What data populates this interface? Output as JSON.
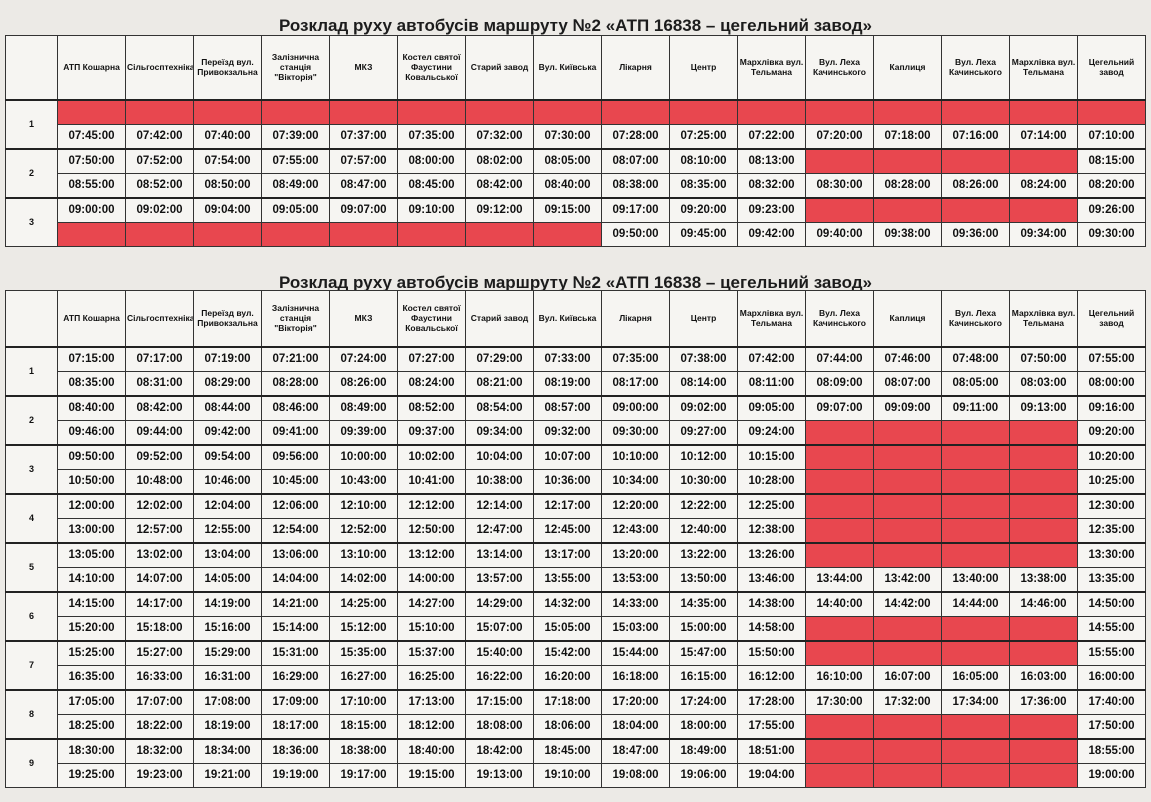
{
  "tables": [
    {
      "title": "Розклад руху автобусів маршруту №2 «АТП 16838 – цегельний завод»",
      "headers": [
        "АТП Кошарна",
        "Сільгосптехніка",
        "Переїзд вул. Привокзальна",
        "Залізнична станція \"Вікторія\"",
        "МКЗ",
        "Костел святої Фаустини Ковальської",
        "Старий завод",
        "Вул. Київська",
        "Лікарня",
        "Центр",
        "Мархлівка вул. Тельмана",
        "Вул. Леха Качинського",
        "Каплиця",
        "Вул. Леха Качинського",
        "Мархлівка вул. Тельмана",
        "Цегельний завод"
      ],
      "groups": [
        {
          "number": 1,
          "rows": [
            [
              null,
              null,
              null,
              null,
              null,
              null,
              null,
              null,
              null,
              null,
              null,
              null,
              null,
              null,
              null,
              null
            ],
            [
              "07:45:00",
              "07:42:00",
              "07:40:00",
              "07:39:00",
              "07:37:00",
              "07:35:00",
              "07:32:00",
              "07:30:00",
              "07:28:00",
              "07:25:00",
              "07:22:00",
              "07:20:00",
              "07:18:00",
              "07:16:00",
              "07:14:00",
              "07:10:00"
            ]
          ]
        },
        {
          "number": 2,
          "rows": [
            [
              "07:50:00",
              "07:52:00",
              "07:54:00",
              "07:55:00",
              "07:57:00",
              "08:00:00",
              "08:02:00",
              "08:05:00",
              "08:07:00",
              "08:10:00",
              "08:13:00",
              null,
              null,
              null,
              null,
              "08:15:00"
            ],
            [
              "08:55:00",
              "08:52:00",
              "08:50:00",
              "08:49:00",
              "08:47:00",
              "08:45:00",
              "08:42:00",
              "08:40:00",
              "08:38:00",
              "08:35:00",
              "08:32:00",
              "08:30:00",
              "08:28:00",
              "08:26:00",
              "08:24:00",
              "08:20:00"
            ]
          ]
        },
        {
          "number": 3,
          "rows": [
            [
              "09:00:00",
              "09:02:00",
              "09:04:00",
              "09:05:00",
              "09:07:00",
              "09:10:00",
              "09:12:00",
              "09:15:00",
              "09:17:00",
              "09:20:00",
              "09:23:00",
              null,
              null,
              null,
              null,
              "09:26:00"
            ],
            [
              null,
              null,
              null,
              null,
              null,
              null,
              null,
              null,
              "09:50:00",
              "09:45:00",
              "09:42:00",
              "09:40:00",
              "09:38:00",
              "09:36:00",
              "09:34:00",
              "09:30:00"
            ]
          ]
        }
      ]
    },
    {
      "title": "Розклад руху автобусів маршруту №2 «АТП 16838 – цегельний завод»",
      "headers": [
        "АТП Кошарна",
        "Сільгосптехніка",
        "Переїзд вул. Привокзальна",
        "Залізнична станція \"Вікторія\"",
        "МКЗ",
        "Костел святої Фаустини Ковальської",
        "Старий завод",
        "Вул. Київська",
        "Лікарня",
        "Центр",
        "Мархлівка вул. Тельмана",
        "Вул. Леха Качинського",
        "Каплиця",
        "Вул. Леха Качинського",
        "Мархлівка вул. Тельмана",
        "Цегельний завод"
      ],
      "groups": [
        {
          "number": 1,
          "rows": [
            [
              "07:15:00",
              "07:17:00",
              "07:19:00",
              "07:21:00",
              "07:24:00",
              "07:27:00",
              "07:29:00",
              "07:33:00",
              "07:35:00",
              "07:38:00",
              "07:42:00",
              "07:44:00",
              "07:46:00",
              "07:48:00",
              "07:50:00",
              "07:55:00"
            ],
            [
              "08:35:00",
              "08:31:00",
              "08:29:00",
              "08:28:00",
              "08:26:00",
              "08:24:00",
              "08:21:00",
              "08:19:00",
              "08:17:00",
              "08:14:00",
              "08:11:00",
              "08:09:00",
              "08:07:00",
              "08:05:00",
              "08:03:00",
              "08:00:00"
            ]
          ]
        },
        {
          "number": 2,
          "rows": [
            [
              "08:40:00",
              "08:42:00",
              "08:44:00",
              "08:46:00",
              "08:49:00",
              "08:52:00",
              "08:54:00",
              "08:57:00",
              "09:00:00",
              "09:02:00",
              "09:05:00",
              "09:07:00",
              "09:09:00",
              "09:11:00",
              "09:13:00",
              "09:16:00"
            ],
            [
              "09:46:00",
              "09:44:00",
              "09:42:00",
              "09:41:00",
              "09:39:00",
              "09:37:00",
              "09:34:00",
              "09:32:00",
              "09:30:00",
              "09:27:00",
              "09:24:00",
              null,
              null,
              null,
              null,
              "09:20:00"
            ]
          ]
        },
        {
          "number": 3,
          "rows": [
            [
              "09:50:00",
              "09:52:00",
              "09:54:00",
              "09:56:00",
              "10:00:00",
              "10:02:00",
              "10:04:00",
              "10:07:00",
              "10:10:00",
              "10:12:00",
              "10:15:00",
              null,
              null,
              null,
              null,
              "10:20:00"
            ],
            [
              "10:50:00",
              "10:48:00",
              "10:46:00",
              "10:45:00",
              "10:43:00",
              "10:41:00",
              "10:38:00",
              "10:36:00",
              "10:34:00",
              "10:30:00",
              "10:28:00",
              null,
              null,
              null,
              null,
              "10:25:00"
            ]
          ]
        },
        {
          "number": 4,
          "rows": [
            [
              "12:00:00",
              "12:02:00",
              "12:04:00",
              "12:06:00",
              "12:10:00",
              "12:12:00",
              "12:14:00",
              "12:17:00",
              "12:20:00",
              "12:22:00",
              "12:25:00",
              null,
              null,
              null,
              null,
              "12:30:00"
            ],
            [
              "13:00:00",
              "12:57:00",
              "12:55:00",
              "12:54:00",
              "12:52:00",
              "12:50:00",
              "12:47:00",
              "12:45:00",
              "12:43:00",
              "12:40:00",
              "12:38:00",
              null,
              null,
              null,
              null,
              "12:35:00"
            ]
          ]
        },
        {
          "number": 5,
          "rows": [
            [
              "13:05:00",
              "13:02:00",
              "13:04:00",
              "13:06:00",
              "13:10:00",
              "13:12:00",
              "13:14:00",
              "13:17:00",
              "13:20:00",
              "13:22:00",
              "13:26:00",
              null,
              null,
              null,
              null,
              "13:30:00"
            ],
            [
              "14:10:00",
              "14:07:00",
              "14:05:00",
              "14:04:00",
              "14:02:00",
              "14:00:00",
              "13:57:00",
              "13:55:00",
              "13:53:00",
              "13:50:00",
              "13:46:00",
              "13:44:00",
              "13:42:00",
              "13:40:00",
              "13:38:00",
              "13:35:00"
            ]
          ]
        },
        {
          "number": 6,
          "rows": [
            [
              "14:15:00",
              "14:17:00",
              "14:19:00",
              "14:21:00",
              "14:25:00",
              "14:27:00",
              "14:29:00",
              "14:32:00",
              "14:33:00",
              "14:35:00",
              "14:38:00",
              "14:40:00",
              "14:42:00",
              "14:44:00",
              "14:46:00",
              "14:50:00"
            ],
            [
              "15:20:00",
              "15:18:00",
              "15:16:00",
              "15:14:00",
              "15:12:00",
              "15:10:00",
              "15:07:00",
              "15:05:00",
              "15:03:00",
              "15:00:00",
              "14:58:00",
              null,
              null,
              null,
              null,
              "14:55:00"
            ]
          ]
        },
        {
          "number": 7,
          "rows": [
            [
              "15:25:00",
              "15:27:00",
              "15:29:00",
              "15:31:00",
              "15:35:00",
              "15:37:00",
              "15:40:00",
              "15:42:00",
              "15:44:00",
              "15:47:00",
              "15:50:00",
              null,
              null,
              null,
              null,
              "15:55:00"
            ],
            [
              "16:35:00",
              "16:33:00",
              "16:31:00",
              "16:29:00",
              "16:27:00",
              "16:25:00",
              "16:22:00",
              "16:20:00",
              "16:18:00",
              "16:15:00",
              "16:12:00",
              "16:10:00",
              "16:07:00",
              "16:05:00",
              "16:03:00",
              "16:00:00"
            ]
          ]
        },
        {
          "number": 8,
          "rows": [
            [
              "17:05:00",
              "17:07:00",
              "17:08:00",
              "17:09:00",
              "17:10:00",
              "17:13:00",
              "17:15:00",
              "17:18:00",
              "17:20:00",
              "17:24:00",
              "17:28:00",
              "17:30:00",
              "17:32:00",
              "17:34:00",
              "17:36:00",
              "17:40:00"
            ],
            [
              "18:25:00",
              "18:22:00",
              "18:19:00",
              "18:17:00",
              "18:15:00",
              "18:12:00",
              "18:08:00",
              "18:06:00",
              "18:04:00",
              "18:00:00",
              "17:55:00",
              null,
              null,
              null,
              null,
              "17:50:00"
            ]
          ]
        },
        {
          "number": 9,
          "rows": [
            [
              "18:30:00",
              "18:32:00",
              "18:34:00",
              "18:36:00",
              "18:38:00",
              "18:40:00",
              "18:42:00",
              "18:45:00",
              "18:47:00",
              "18:49:00",
              "18:51:00",
              null,
              null,
              null,
              null,
              "18:55:00"
            ],
            [
              "19:25:00",
              "19:23:00",
              "19:21:00",
              "19:19:00",
              "19:17:00",
              "19:15:00",
              "19:13:00",
              "19:10:00",
              "19:08:00",
              "19:06:00",
              "19:04:00",
              null,
              null,
              null,
              null,
              "19:00:00"
            ]
          ]
        }
      ]
    }
  ]
}
